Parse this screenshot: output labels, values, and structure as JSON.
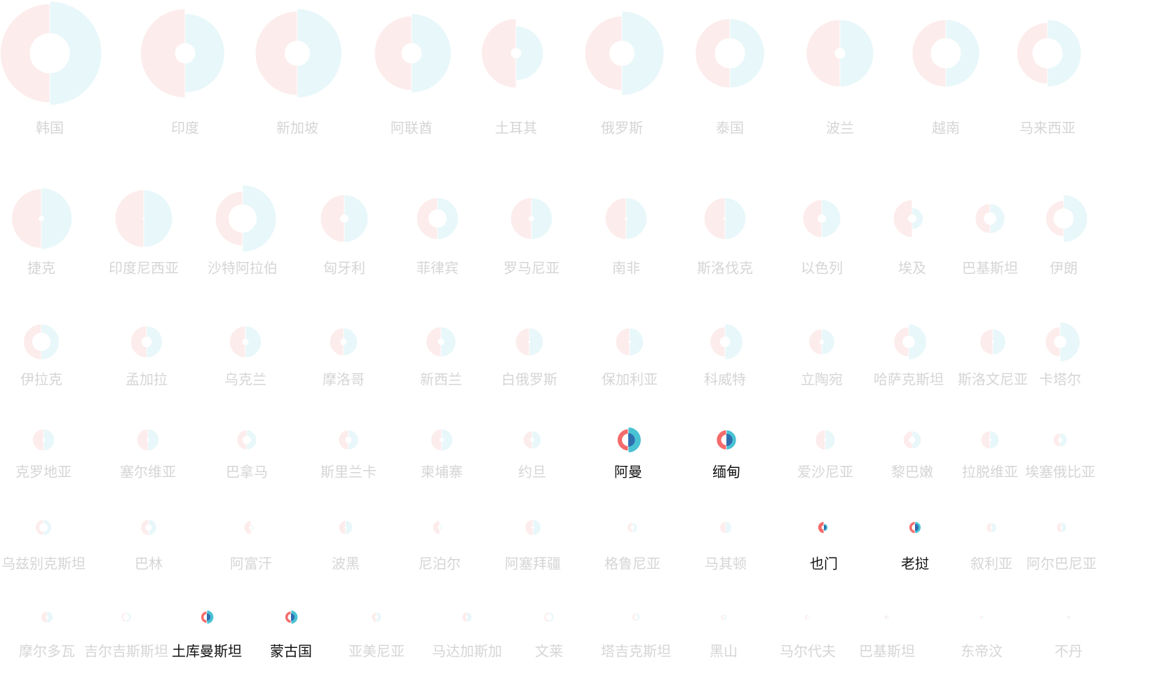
{
  "chart_data": {
    "type": "small-multiples-split-donut",
    "title": "",
    "xlabel": "",
    "ylabel": "",
    "colors": {
      "left_half": "#f46b6b",
      "right_half": "#49c2d4",
      "inner_dot": "#2f6fb0",
      "label_highlight": "#111111",
      "label_dim": "#c8c8c8"
    },
    "dim_opacity": 0.12,
    "countries": [
      {
        "name": "韩国",
        "row": 0,
        "col": 0,
        "left": 1.0,
        "right": 1.05,
        "hole": 0.4,
        "highlight": false
      },
      {
        "name": "印度",
        "row": 0,
        "col": 1,
        "left": 0.9,
        "right": 0.8,
        "hole": 0.2,
        "highlight": false
      },
      {
        "name": "新加坡",
        "row": 0,
        "col": 2,
        "left": 0.85,
        "right": 0.9,
        "hole": 0.25,
        "highlight": false
      },
      {
        "name": "阿联酋",
        "row": 0,
        "col": 3,
        "left": 0.75,
        "right": 0.8,
        "hole": 0.2,
        "highlight": false
      },
      {
        "name": "土耳其",
        "row": 0,
        "col": 4,
        "left": 0.7,
        "right": 0.55,
        "hole": 0.1,
        "highlight": false
      },
      {
        "name": "俄罗斯",
        "row": 0,
        "col": 5,
        "left": 0.75,
        "right": 0.85,
        "hole": 0.25,
        "highlight": false
      },
      {
        "name": "泰国",
        "row": 0,
        "col": 6,
        "left": 0.7,
        "right": 0.7,
        "hole": 0.3,
        "highlight": false
      },
      {
        "name": "波兰",
        "row": 0,
        "col": 7,
        "left": 0.68,
        "right": 0.68,
        "hole": 0.1,
        "highlight": false
      },
      {
        "name": "越南",
        "row": 0,
        "col": 8,
        "left": 0.68,
        "right": 0.68,
        "hole": 0.3,
        "highlight": false
      },
      {
        "name": "马来西亚",
        "row": 0,
        "col": 9,
        "left": 0.62,
        "right": 0.68,
        "hole": 0.3,
        "highlight": false
      },
      {
        "name": "捷克",
        "row": 1,
        "col": 0,
        "left": 0.6,
        "right": 0.62,
        "hole": 0.05,
        "highlight": false
      },
      {
        "name": "印度尼西亚",
        "row": 1,
        "col": 1,
        "left": 0.58,
        "right": 0.58,
        "hole": 0.02,
        "highlight": false
      },
      {
        "name": "沙特阿拉伯",
        "row": 1,
        "col": 2,
        "left": 0.55,
        "right": 0.68,
        "hole": 0.28,
        "highlight": false
      },
      {
        "name": "匈牙利",
        "row": 1,
        "col": 3,
        "left": 0.48,
        "right": 0.48,
        "hole": 0.08,
        "highlight": false
      },
      {
        "name": "菲律宾",
        "row": 1,
        "col": 4,
        "left": 0.42,
        "right": 0.42,
        "hole": 0.18,
        "highlight": false
      },
      {
        "name": "罗马尼亚",
        "row": 1,
        "col": 5,
        "left": 0.42,
        "right": 0.42,
        "hole": 0.05,
        "highlight": false
      },
      {
        "name": "南非",
        "row": 1,
        "col": 6,
        "left": 0.42,
        "right": 0.42,
        "hole": 0.02,
        "highlight": false
      },
      {
        "name": "斯洛伐克",
        "row": 1,
        "col": 7,
        "left": 0.42,
        "right": 0.42,
        "hole": 0.02,
        "highlight": false
      },
      {
        "name": "以色列",
        "row": 1,
        "col": 8,
        "left": 0.38,
        "right": 0.38,
        "hole": 0.08,
        "highlight": false
      },
      {
        "name": "埃及",
        "row": 1,
        "col": 9,
        "left": 0.38,
        "right": 0.22,
        "hole": 0.08,
        "highlight": false
      },
      {
        "name": "巴基斯坦",
        "row": 1,
        "col": 10,
        "left": 0.3,
        "right": 0.3,
        "hole": 0.12,
        "highlight": false
      },
      {
        "name": "伊朗",
        "row": 1,
        "col": 11,
        "left": 0.36,
        "right": 0.48,
        "hole": 0.2,
        "highlight": false
      },
      {
        "name": "伊拉克",
        "row": 2,
        "col": 0,
        "left": 0.36,
        "right": 0.36,
        "hole": 0.18,
        "highlight": false
      },
      {
        "name": "孟加拉",
        "row": 2,
        "col": 1,
        "left": 0.32,
        "right": 0.32,
        "hole": 0.1,
        "highlight": false
      },
      {
        "name": "乌克兰",
        "row": 2,
        "col": 2,
        "left": 0.32,
        "right": 0.32,
        "hole": 0.06,
        "highlight": false
      },
      {
        "name": "摩洛哥",
        "row": 2,
        "col": 3,
        "left": 0.28,
        "right": 0.28,
        "hole": 0.06,
        "highlight": false
      },
      {
        "name": "新西兰",
        "row": 2,
        "col": 4,
        "left": 0.3,
        "right": 0.3,
        "hole": 0.06,
        "highlight": false
      },
      {
        "name": "白俄罗斯",
        "row": 2,
        "col": 5,
        "left": 0.28,
        "right": 0.28,
        "hole": 0.02,
        "highlight": false
      },
      {
        "name": "保加利亚",
        "row": 2,
        "col": 6,
        "left": 0.28,
        "right": 0.28,
        "hole": 0.02,
        "highlight": false
      },
      {
        "name": "科威特",
        "row": 2,
        "col": 7,
        "left": 0.3,
        "right": 0.36,
        "hole": 0.1,
        "highlight": false
      },
      {
        "name": "立陶宛",
        "row": 2,
        "col": 8,
        "left": 0.26,
        "right": 0.26,
        "hole": 0.04,
        "highlight": false
      },
      {
        "name": "哈萨克斯坦",
        "row": 2,
        "col": 9,
        "left": 0.3,
        "right": 0.36,
        "hole": 0.12,
        "highlight": false
      },
      {
        "name": "斯洛文尼亚",
        "row": 2,
        "col": 10,
        "left": 0.26,
        "right": 0.26,
        "hole": 0.02,
        "highlight": false
      },
      {
        "name": "卡塔尔",
        "row": 2,
        "col": 11,
        "left": 0.3,
        "right": 0.4,
        "hole": 0.12,
        "highlight": false
      },
      {
        "name": "克罗地亚",
        "row": 3,
        "col": 0,
        "left": 0.22,
        "right": 0.22,
        "hole": 0.02,
        "highlight": false
      },
      {
        "name": "塞尔维亚",
        "row": 3,
        "col": 1,
        "left": 0.22,
        "right": 0.22,
        "hole": 0.02,
        "highlight": false
      },
      {
        "name": "巴拿马",
        "row": 3,
        "col": 2,
        "left": 0.2,
        "right": 0.2,
        "hole": 0.08,
        "highlight": false
      },
      {
        "name": "斯里兰卡",
        "row": 3,
        "col": 3,
        "left": 0.2,
        "right": 0.2,
        "hole": 0.06,
        "highlight": false
      },
      {
        "name": "柬埔寨",
        "row": 3,
        "col": 4,
        "left": 0.22,
        "right": 0.22,
        "hole": 0.04,
        "highlight": false
      },
      {
        "name": "约旦",
        "row": 3,
        "col": 5,
        "left": 0.18,
        "right": 0.18,
        "hole": 0.04,
        "highlight": false
      },
      {
        "name": "阿曼",
        "row": 3,
        "col": 6,
        "left": 0.22,
        "right": 0.26,
        "hole": 0.12,
        "highlight": true
      },
      {
        "name": "缅甸",
        "row": 3,
        "col": 7,
        "left": 0.2,
        "right": 0.2,
        "hole": 0.1,
        "highlight": true
      },
      {
        "name": "爱沙尼亚",
        "row": 3,
        "col": 8,
        "left": 0.2,
        "right": 0.2,
        "hole": 0.02,
        "highlight": false
      },
      {
        "name": "黎巴嫩",
        "row": 3,
        "col": 9,
        "left": 0.18,
        "right": 0.18,
        "hole": 0.06,
        "highlight": false
      },
      {
        "name": "拉脱维亚",
        "row": 3,
        "col": 10,
        "left": 0.18,
        "right": 0.18,
        "hole": 0.02,
        "highlight": false
      },
      {
        "name": "埃塞俄比亚",
        "row": 3,
        "col": 11,
        "left": 0.14,
        "right": 0.14,
        "hole": 0.04,
        "highlight": false
      },
      {
        "name": "乌兹别克斯坦",
        "row": 4,
        "col": 0,
        "left": 0.16,
        "right": 0.16,
        "hole": 0.08,
        "highlight": false
      },
      {
        "name": "巴林",
        "row": 4,
        "col": 1,
        "left": 0.16,
        "right": 0.16,
        "hole": 0.06,
        "highlight": false
      },
      {
        "name": "阿富汗",
        "row": 4,
        "col": 2,
        "left": 0.14,
        "right": 0.06,
        "hole": 0.03,
        "highlight": false
      },
      {
        "name": "波黑",
        "row": 4,
        "col": 3,
        "left": 0.14,
        "right": 0.14,
        "hole": 0.02,
        "highlight": false
      },
      {
        "name": "尼泊尔",
        "row": 4,
        "col": 4,
        "left": 0.14,
        "right": 0.06,
        "hole": 0.03,
        "highlight": false
      },
      {
        "name": "阿塞拜疆",
        "row": 4,
        "col": 5,
        "left": 0.16,
        "right": 0.16,
        "hole": 0.02,
        "highlight": false
      },
      {
        "name": "格鲁尼亚",
        "row": 4,
        "col": 6,
        "left": 0.1,
        "right": 0.1,
        "hole": 0.04,
        "highlight": false
      },
      {
        "name": "马其顿",
        "row": 4,
        "col": 7,
        "left": 0.12,
        "right": 0.12,
        "hole": 0.0,
        "highlight": false
      },
      {
        "name": "也门",
        "row": 4,
        "col": 8,
        "left": 0.12,
        "right": 0.08,
        "hole": 0.04,
        "highlight": true
      },
      {
        "name": "老挝",
        "row": 4,
        "col": 9,
        "left": 0.12,
        "right": 0.12,
        "hole": 0.06,
        "highlight": true
      },
      {
        "name": "叙利亚",
        "row": 4,
        "col": 10,
        "left": 0.1,
        "right": 0.1,
        "hole": 0.02,
        "highlight": false
      },
      {
        "name": "阿尔巴尼亚",
        "row": 4,
        "col": 11,
        "left": 0.1,
        "right": 0.1,
        "hole": 0.02,
        "highlight": false
      },
      {
        "name": "摩尔多瓦",
        "row": 5,
        "col": 0,
        "left": 0.12,
        "right": 0.12,
        "hole": 0.02,
        "highlight": false
      },
      {
        "name": "吉尔吉斯斯坦",
        "row": 5,
        "col": 1,
        "left": 0.1,
        "right": 0.1,
        "hole": 0.06,
        "highlight": false
      },
      {
        "name": "土库曼斯坦",
        "row": 5,
        "col": 2,
        "left": 0.12,
        "right": 0.14,
        "hole": 0.06,
        "highlight": true
      },
      {
        "name": "蒙古国",
        "row": 5,
        "col": 3,
        "left": 0.12,
        "right": 0.14,
        "hole": 0.06,
        "highlight": true
      },
      {
        "name": "亚美尼亚",
        "row": 5,
        "col": 4,
        "left": 0.1,
        "right": 0.1,
        "hole": 0.03,
        "highlight": false
      },
      {
        "name": "马达加斯加",
        "row": 5,
        "col": 5,
        "left": 0.1,
        "right": 0.1,
        "hole": 0.02,
        "highlight": false
      },
      {
        "name": "文莱",
        "row": 5,
        "col": 6,
        "left": 0.1,
        "right": 0.1,
        "hole": 0.06,
        "highlight": false
      },
      {
        "name": "塔吉克斯坦",
        "row": 5,
        "col": 7,
        "left": 0.08,
        "right": 0.08,
        "hole": 0.04,
        "highlight": false
      },
      {
        "name": "黑山",
        "row": 5,
        "col": 8,
        "left": 0.06,
        "right": 0.06,
        "hole": 0.02,
        "highlight": false
      },
      {
        "name": "马尔代夫",
        "row": 5,
        "col": 9,
        "left": 0.06,
        "right": 0.04,
        "hole": 0.02,
        "highlight": false
      },
      {
        "name": "巴基斯坦",
        "row": 5,
        "col": 10,
        "left": 0.05,
        "right": 0.04,
        "hole": 0.0,
        "highlight": false
      },
      {
        "name": "东帝汶",
        "row": 5,
        "col": 11,
        "left": 0.04,
        "right": 0.04,
        "hole": 0.0,
        "highlight": false
      },
      {
        "name": "不丹",
        "row": 5,
        "col": 12,
        "left": 0.04,
        "right": 0.04,
        "hole": 0.0,
        "highlight": false
      }
    ]
  }
}
